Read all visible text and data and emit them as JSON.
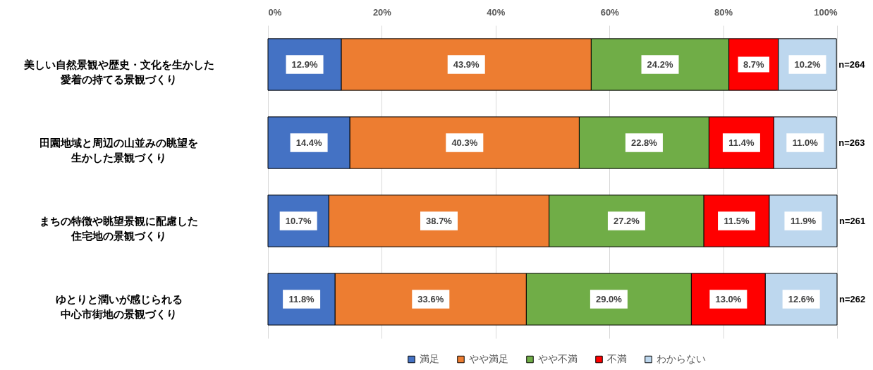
{
  "chart_data": {
    "type": "bar",
    "orientation": "horizontal",
    "stacked": true,
    "categories": [
      "美しい自然景観や歴史・文化を生かした愛着の持てる景観づくり",
      "田園地域と周辺の山並みの眺望を生かした景観づくり",
      "まちの特徴や眺望景観に配慮した住宅地の景観づくり",
      "ゆとりと潤いが感じられる中心市街地の景観づくり"
    ],
    "series": [
      {
        "name": "満足",
        "color": "#4472c4",
        "values": [
          12.9,
          14.4,
          10.7,
          11.8
        ],
        "value_labels": [
          "12.9%",
          "14.4%",
          "10.7%",
          "11.8%"
        ]
      },
      {
        "name": "やや満足",
        "color": "#ed7d31",
        "values": [
          43.9,
          40.3,
          38.7,
          33.6
        ],
        "value_labels": [
          "43.9%",
          "40.3%",
          "38.7%",
          "33.6%"
        ]
      },
      {
        "name": "やや不満",
        "color": "#70ad47",
        "values": [
          24.2,
          22.8,
          27.2,
          29.0
        ],
        "value_labels": [
          "24.2%",
          "22.8%",
          "27.2%",
          "29.0%"
        ]
      },
      {
        "name": "不満",
        "color": "#ff0000",
        "values": [
          8.7,
          11.4,
          11.5,
          13.0
        ],
        "value_labels": [
          "8.7%",
          "11.4%",
          "11.5%",
          "13.0%"
        ]
      },
      {
        "name": "わからない",
        "color": "#bdd7ee",
        "values": [
          10.2,
          11.0,
          11.9,
          12.6
        ],
        "value_labels": [
          "10.2%",
          "11.0%",
          "11.9%",
          "12.6%"
        ]
      }
    ],
    "xlim": [
      0,
      100
    ],
    "xticks": [
      {
        "value": 0,
        "label": "0%"
      },
      {
        "value": 20,
        "label": "20%"
      },
      {
        "value": 40,
        "label": "40%"
      },
      {
        "value": 60,
        "label": "60%"
      },
      {
        "value": 80,
        "label": "80%"
      },
      {
        "value": 100,
        "label": "100%"
      }
    ],
    "grid": true,
    "legend": "bottom",
    "annotations": [
      "n=264",
      "n=263",
      "n=261",
      "n=262"
    ]
  }
}
